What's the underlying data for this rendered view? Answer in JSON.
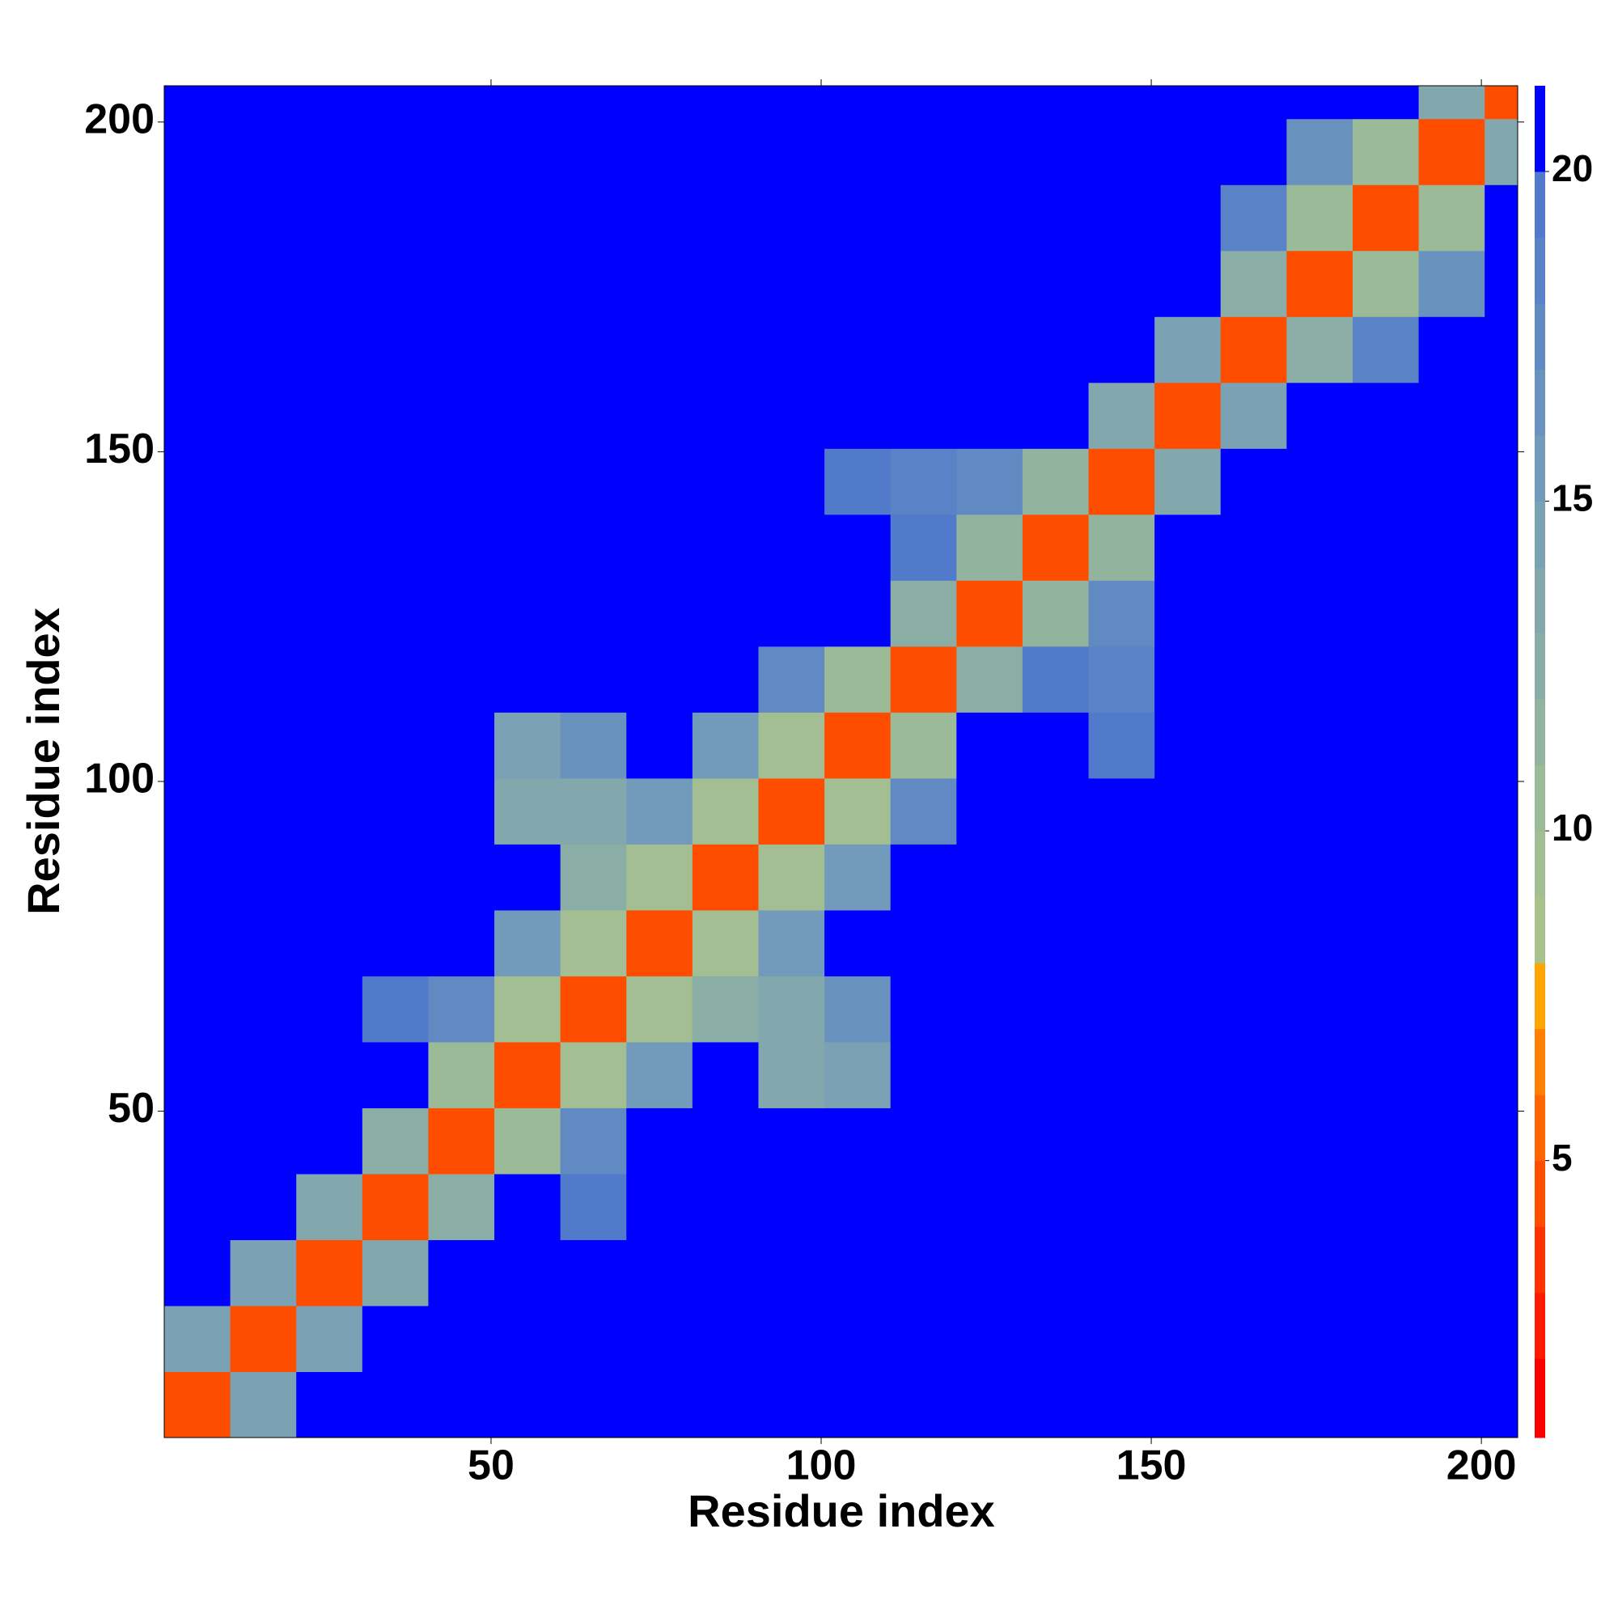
{
  "chart_data": {
    "type": "heatmap",
    "x_label": "Residue index",
    "y_label": "Residue index",
    "xbins": [
      0.5,
      10.5,
      20.5,
      30.5,
      40.5,
      50.5,
      60.5,
      70.5,
      80.5,
      90.5,
      100.5,
      110.5,
      120.5,
      130.5,
      140.5,
      150.5,
      160.5,
      170.5,
      180.5,
      190.5,
      200.5,
      205.5
    ],
    "ybins": [
      0.5,
      10.5,
      20.5,
      30.5,
      40.5,
      50.5,
      60.5,
      70.5,
      80.5,
      90.5,
      100.5,
      110.5,
      120.5,
      130.5,
      140.5,
      150.5,
      160.5,
      170.5,
      180.5,
      190.5,
      200.5,
      205.5
    ],
    "z": [
      [
        4,
        14,
        21,
        21,
        21,
        21,
        21,
        21,
        21,
        21,
        21,
        21,
        21,
        21,
        21,
        21,
        21,
        21,
        21,
        21,
        21
      ],
      [
        14,
        4,
        14,
        21,
        21,
        21,
        21,
        21,
        21,
        21,
        21,
        21,
        21,
        21,
        21,
        21,
        21,
        21,
        21,
        21,
        21
      ],
      [
        21,
        14,
        4,
        13,
        21,
        21,
        21,
        21,
        21,
        21,
        21,
        21,
        21,
        21,
        21,
        21,
        21,
        21,
        21,
        21,
        21
      ],
      [
        21,
        21,
        13,
        4,
        12,
        21,
        19,
        21,
        21,
        21,
        21,
        21,
        21,
        21,
        21,
        21,
        21,
        21,
        21,
        21,
        21
      ],
      [
        21,
        21,
        21,
        12,
        4,
        10,
        17,
        21,
        21,
        21,
        21,
        21,
        21,
        21,
        21,
        21,
        21,
        21,
        21,
        21,
        21
      ],
      [
        21,
        21,
        21,
        21,
        10,
        4,
        9,
        15,
        21,
        13,
        14,
        21,
        21,
        21,
        21,
        21,
        21,
        21,
        21,
        21,
        21
      ],
      [
        21,
        21,
        21,
        19,
        17,
        9,
        4,
        9,
        12,
        13,
        16,
        21,
        21,
        21,
        21,
        21,
        21,
        21,
        21,
        21,
        21
      ],
      [
        21,
        21,
        21,
        21,
        21,
        15,
        9,
        4,
        9,
        15,
        21,
        21,
        21,
        21,
        21,
        21,
        21,
        21,
        21,
        21,
        21
      ],
      [
        21,
        21,
        21,
        21,
        21,
        21,
        12,
        9,
        4,
        9,
        15,
        21,
        21,
        21,
        21,
        21,
        21,
        21,
        21,
        21,
        21
      ],
      [
        21,
        21,
        21,
        21,
        21,
        13,
        13,
        15,
        9,
        4,
        9,
        17,
        21,
        21,
        21,
        21,
        21,
        21,
        21,
        21,
        21
      ],
      [
        21,
        21,
        21,
        21,
        21,
        14,
        16,
        21,
        15,
        9,
        4,
        10,
        21,
        21,
        19,
        21,
        21,
        21,
        21,
        21,
        21
      ],
      [
        21,
        21,
        21,
        21,
        21,
        21,
        21,
        21,
        21,
        17,
        10,
        4,
        12,
        19,
        18,
        21,
        21,
        21,
        21,
        21,
        21
      ],
      [
        21,
        21,
        21,
        21,
        21,
        21,
        21,
        21,
        21,
        21,
        21,
        12,
        4,
        11,
        17,
        21,
        21,
        21,
        21,
        21,
        21
      ],
      [
        21,
        21,
        21,
        21,
        21,
        21,
        21,
        21,
        21,
        21,
        21,
        19,
        11,
        4,
        11,
        21,
        21,
        21,
        21,
        21,
        21
      ],
      [
        21,
        21,
        21,
        21,
        21,
        21,
        21,
        21,
        21,
        21,
        19,
        18,
        17,
        11,
        4,
        13,
        21,
        21,
        21,
        21,
        21
      ],
      [
        21,
        21,
        21,
        21,
        21,
        21,
        21,
        21,
        21,
        21,
        21,
        21,
        21,
        21,
        13,
        4,
        14,
        21,
        21,
        21,
        21
      ],
      [
        21,
        21,
        21,
        21,
        21,
        21,
        21,
        21,
        21,
        21,
        21,
        21,
        21,
        21,
        21,
        14,
        4,
        12,
        18,
        21,
        21
      ],
      [
        21,
        21,
        21,
        21,
        21,
        21,
        21,
        21,
        21,
        21,
        21,
        21,
        21,
        21,
        21,
        21,
        12,
        4,
        10,
        16,
        21
      ],
      [
        21,
        21,
        21,
        21,
        21,
        21,
        21,
        21,
        21,
        21,
        21,
        21,
        21,
        21,
        21,
        21,
        18,
        10,
        4,
        10,
        21
      ],
      [
        21,
        21,
        21,
        21,
        21,
        21,
        21,
        21,
        21,
        21,
        21,
        21,
        21,
        21,
        21,
        21,
        21,
        16,
        10,
        4,
        13
      ],
      [
        21,
        21,
        21,
        21,
        21,
        21,
        21,
        21,
        21,
        21,
        21,
        21,
        21,
        21,
        21,
        21,
        21,
        21,
        21,
        13,
        4
      ]
    ],
    "xlim": [
      0.5,
      205.5
    ],
    "ylim": [
      0.5,
      205.5
    ],
    "xticks": [
      50,
      100,
      150,
      200
    ],
    "yticks": [
      50,
      100,
      150,
      200
    ],
    "colorbar": {
      "lim": [
        0.8,
        21.3
      ],
      "ticks": [
        5,
        10,
        15,
        20
      ],
      "levels": [
        0.8,
        2,
        3,
        4,
        5,
        6,
        7,
        8,
        9,
        10,
        11,
        12,
        13,
        14,
        15,
        16,
        17,
        18,
        19,
        20,
        21.3
      ],
      "colors": [
        "#ff0000",
        "#ff1a00",
        "#ff3300",
        "#ff4d00",
        "#ff6600",
        "#ff8000",
        "#ffa500",
        "#a9c28c",
        "#a2be92",
        "#9aba98",
        "#92b49e",
        "#8aaea6",
        "#82a8ae",
        "#7aa2b4",
        "#729aba",
        "#6a92be",
        "#628ac2",
        "#5a82c6",
        "#527aca",
        "#0000ff"
      ]
    }
  }
}
